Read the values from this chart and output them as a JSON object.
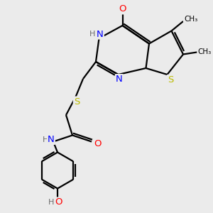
{
  "bg_color": "#ebebeb",
  "bond_color": "#000000",
  "atom_colors": {
    "N": "#0000ff",
    "O": "#ff0000",
    "S": "#bbbb00",
    "C": "#000000",
    "H": "#6a6a6a"
  },
  "figsize": [
    3.0,
    3.0
  ],
  "dpi": 100
}
